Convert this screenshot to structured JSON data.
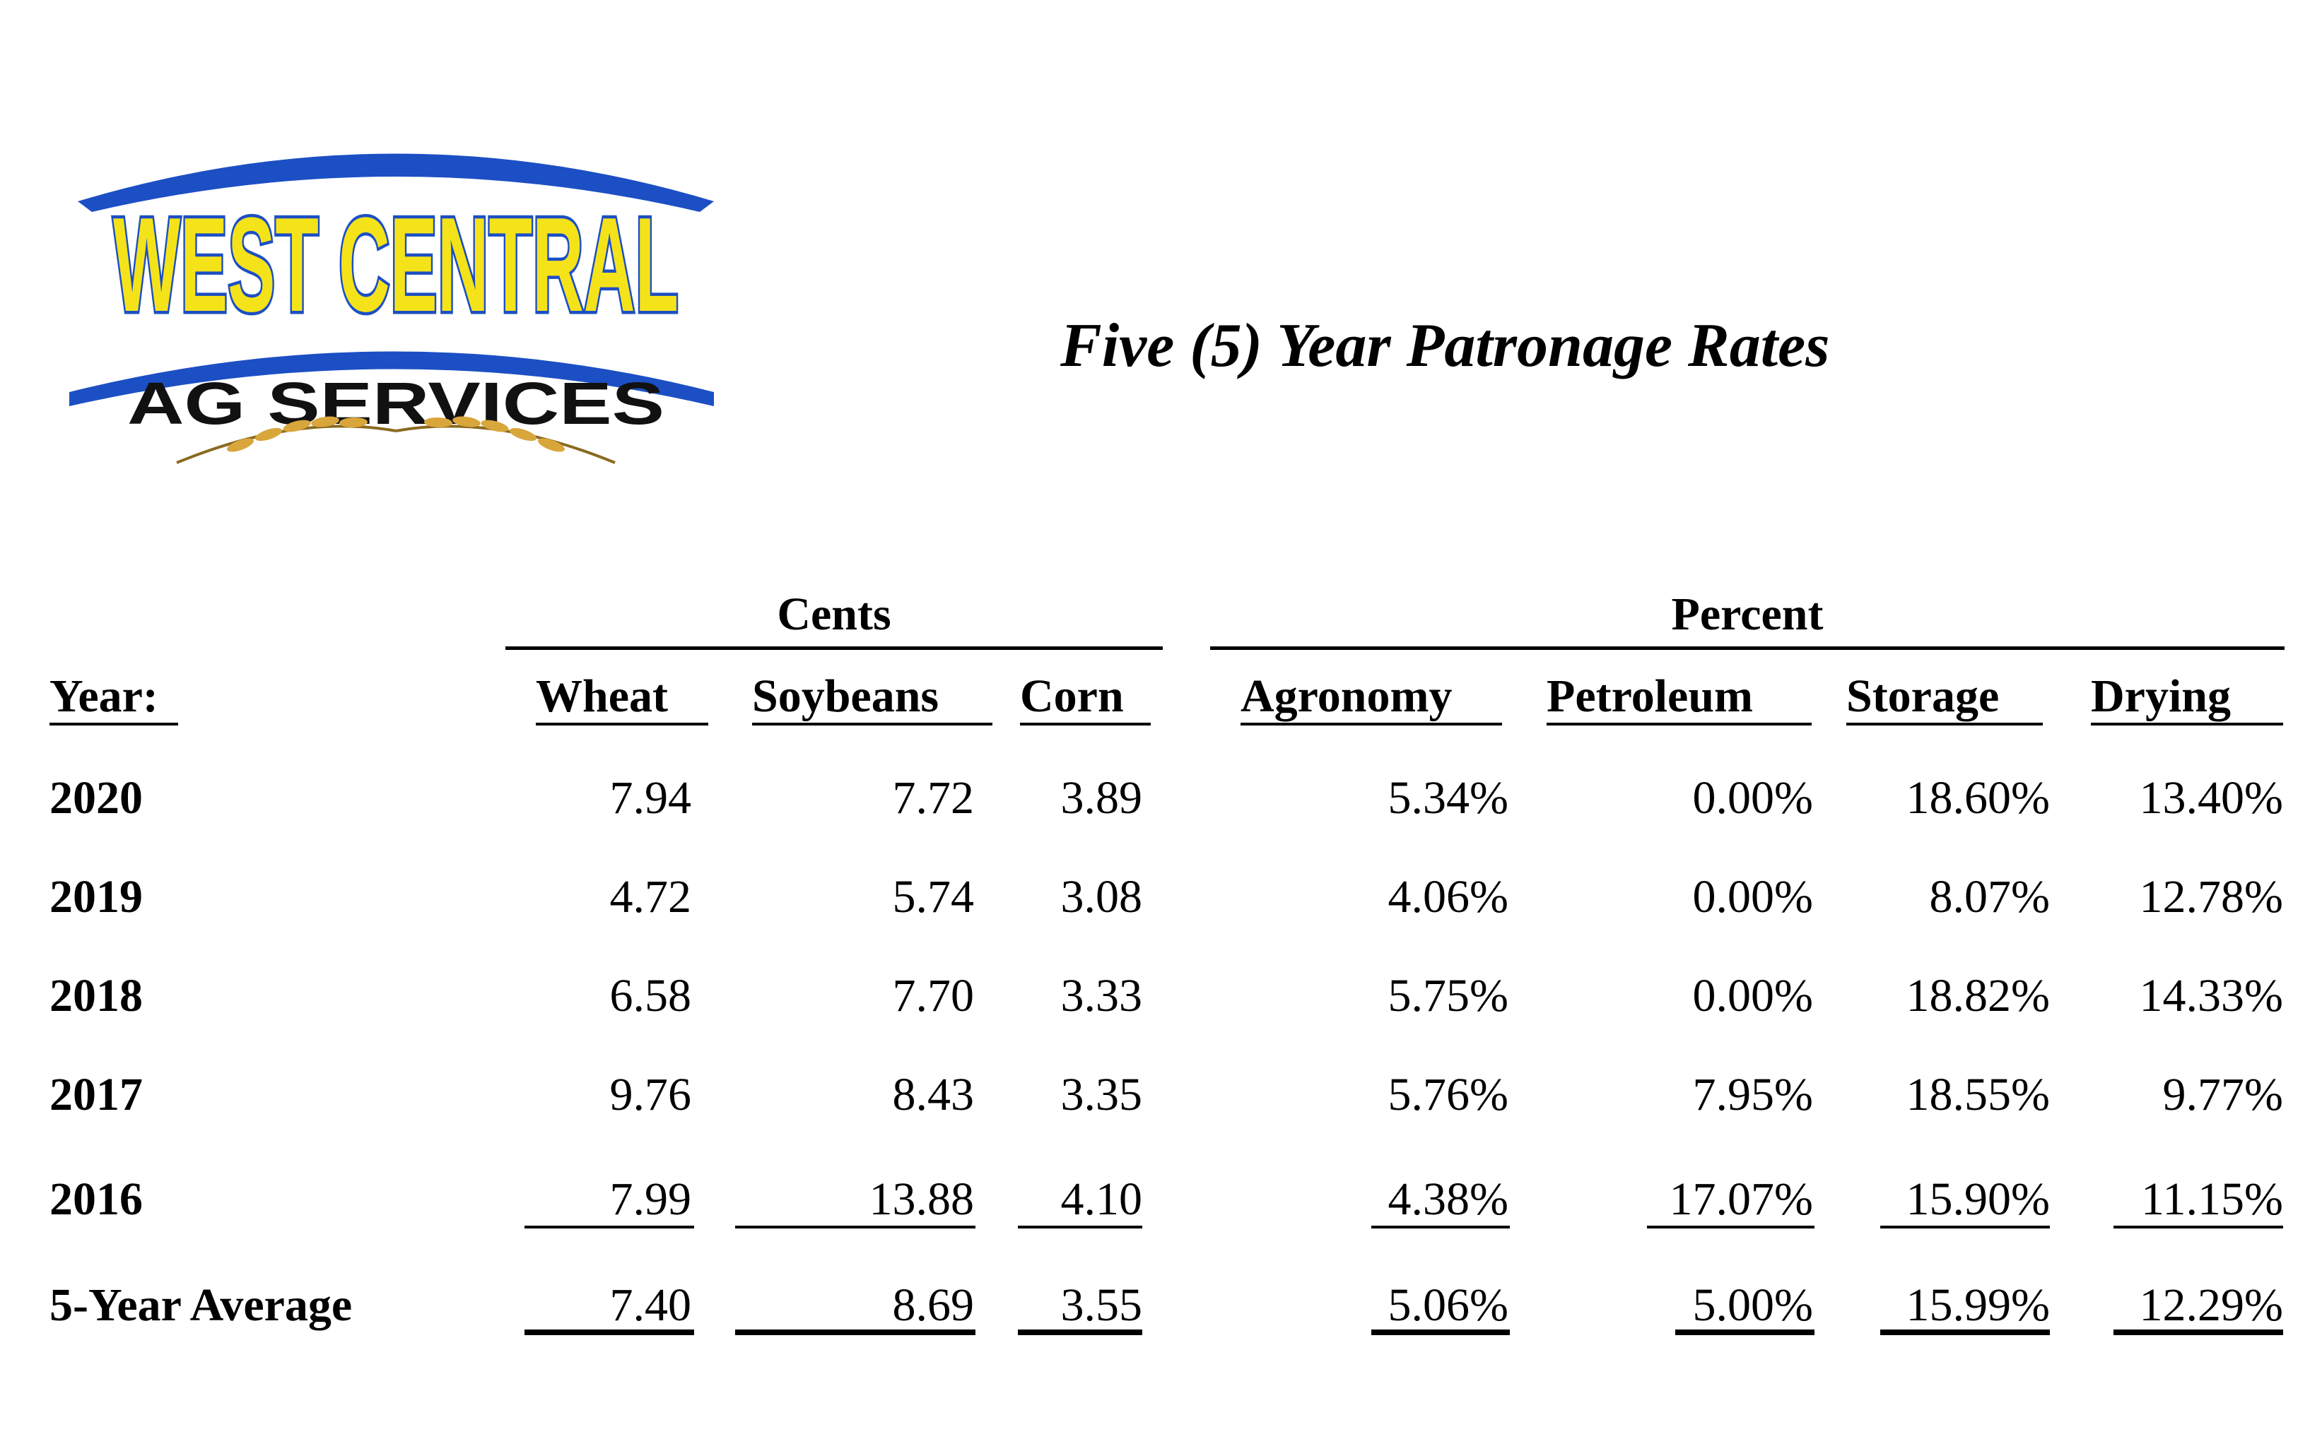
{
  "logo": {
    "line1": "WEST CENTRAL",
    "line2": "AG SERVICES"
  },
  "title": "Five (5) Year Patronage Rates",
  "groups": {
    "cents": "Cents",
    "percent": "Percent"
  },
  "headers": {
    "year": "Year:",
    "wheat": "Wheat",
    "soybeans": "Soybeans",
    "corn": "Corn",
    "agronomy": "Agronomy",
    "petroleum": "Petroleum",
    "storage": "Storage",
    "drying": "Drying"
  },
  "rows": [
    {
      "year": "2020",
      "wheat": "7.94",
      "soybeans": "7.72",
      "corn": "3.89",
      "agronomy": "5.34%",
      "petroleum": "0.00%",
      "storage": "18.60%",
      "drying": "13.40%"
    },
    {
      "year": "2019",
      "wheat": "4.72",
      "soybeans": "5.74",
      "corn": "3.08",
      "agronomy": "4.06%",
      "petroleum": "0.00%",
      "storage": "8.07%",
      "drying": "12.78%"
    },
    {
      "year": "2018",
      "wheat": "6.58",
      "soybeans": "7.70",
      "corn": "3.33",
      "agronomy": "5.75%",
      "petroleum": "0.00%",
      "storage": "18.82%",
      "drying": "14.33%"
    },
    {
      "year": "2017",
      "wheat": "9.76",
      "soybeans": "8.43",
      "corn": "3.35",
      "agronomy": "5.76%",
      "petroleum": "7.95%",
      "storage": "18.55%",
      "drying": "9.77%"
    },
    {
      "year": "2016",
      "wheat": "7.99",
      "soybeans": "13.88",
      "corn": "4.10",
      "agronomy": "4.38%",
      "petroleum": "17.07%",
      "storage": "15.90%",
      "drying": "11.15%"
    }
  ],
  "average": {
    "year": "5-Year Average",
    "wheat": "7.40",
    "soybeans": "8.69",
    "corn": "3.55",
    "agronomy": "5.06%",
    "petroleum": "5.00%",
    "storage": "15.99%",
    "drying": "12.29%"
  },
  "colors": {
    "logo_blue": "#1c4fc4",
    "logo_yellow": "#f5e31a",
    "wheat_gold": "#d9a63c"
  }
}
